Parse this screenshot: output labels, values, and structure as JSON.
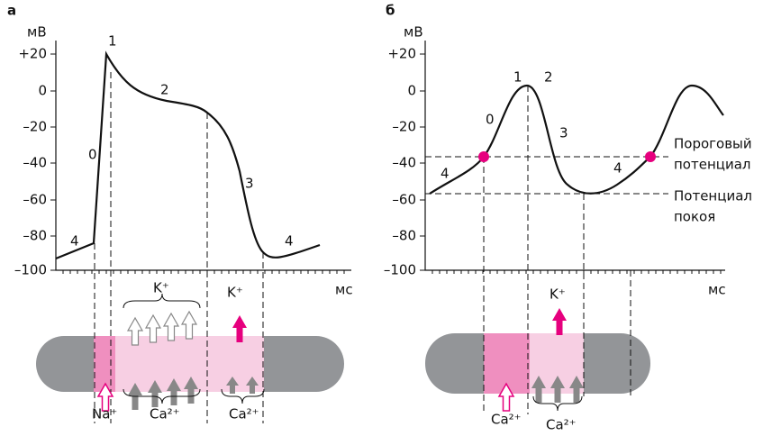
{
  "panels": [
    {
      "label": "а",
      "y_unit": "мВ",
      "x_unit": "мс",
      "yticks": [
        "+20",
        "0",
        "–20",
        "–40",
        "–60",
        "–80",
        "–100"
      ],
      "phase_labels": [
        "0",
        "1",
        "2",
        "3",
        "4",
        "4"
      ],
      "ions": {
        "top_brace": "K⁺",
        "efflux": "K⁺",
        "sodium": "Na⁺",
        "calcium_1": "Ca²⁺",
        "calcium_2": "Ca²⁺"
      }
    },
    {
      "label": "б",
      "y_unit": "мВ",
      "x_unit": "мс",
      "yticks": [
        "+20",
        "0",
        "–20",
        "–40",
        "–60",
        "–80",
        "–100"
      ],
      "phase_labels": [
        "0",
        "1",
        "2",
        "3",
        "4",
        "4"
      ],
      "threshold": [
        "Пороговый",
        "потенциал"
      ],
      "resting": [
        "Потенциал",
        "покоя"
      ],
      "ions": {
        "efflux": "K⁺",
        "calcium_1": "Ca²⁺",
        "calcium_2": "Ca²⁺"
      }
    }
  ]
}
